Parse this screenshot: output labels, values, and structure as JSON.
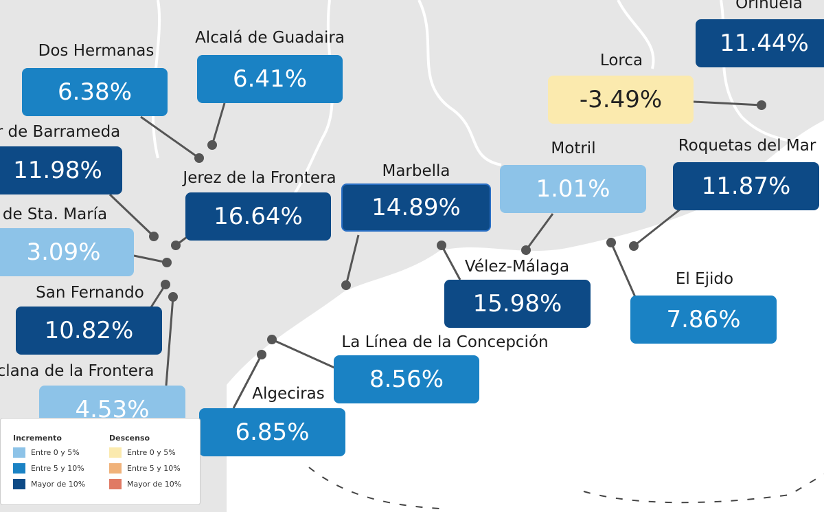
{
  "cities": [
    {
      "name": "Orihuela",
      "value": "11.44%",
      "color": "#0d4a86"
    },
    {
      "name": "Alcalá de Guadaira",
      "value": "6.41%",
      "color": "#1a82c4"
    },
    {
      "name": "Dos Hermanas",
      "value": "6.38%",
      "color": "#1a82c4"
    },
    {
      "name": "Lorca",
      "value": "-3.49%",
      "color": "#fbeaae"
    },
    {
      "name": "r de Barrameda",
      "value": "11.98%",
      "color": "#0d4a86"
    },
    {
      "name": "Motril",
      "value": "1.01%",
      "color": "#8dc3e8"
    },
    {
      "name": "Roquetas del Mar",
      "value": "11.87%",
      "color": "#0d4a86"
    },
    {
      "name": "Jerez de la Frontera",
      "value": "16.64%",
      "color": "#0d4a86"
    },
    {
      "name": "Marbella",
      "value": "14.89%",
      "color": "#0d4a86"
    },
    {
      "name": "de Sta. María",
      "value": "3.09%",
      "color": "#8dc3e8"
    },
    {
      "name": "Vélez-Málaga",
      "value": "15.98%",
      "color": "#0d4a86"
    },
    {
      "name": "El Ejido",
      "value": "7.86%",
      "color": "#1a82c4"
    },
    {
      "name": "San Fernando",
      "value": "10.82%",
      "color": "#0d4a86"
    },
    {
      "name": "La Línea de la Concepción",
      "value": "8.56%",
      "color": "#1a82c4"
    },
    {
      "name": "clana de la Frontera",
      "value": "4.53%",
      "color": "#8dc3e8"
    },
    {
      "name": "Algeciras",
      "value": "6.85%",
      "color": "#1a82c4"
    }
  ],
  "legend": {
    "increase": {
      "title": "Incremento",
      "items": [
        {
          "label": "Entre 0 y 5%",
          "color": "#8dc3e8"
        },
        {
          "label": "Entre 5 y 10%",
          "color": "#1a82c4"
        },
        {
          "label": "Mayor de 10%",
          "color": "#0d4a86"
        }
      ]
    },
    "decrease": {
      "title": "Descenso",
      "items": [
        {
          "label": "Entre 0 y 5%",
          "color": "#fbeaae"
        },
        {
          "label": "Entre 5 y 10%",
          "color": "#f0b27a"
        },
        {
          "label": "Mayor de 10%",
          "color": "#e07a64"
        }
      ]
    }
  }
}
